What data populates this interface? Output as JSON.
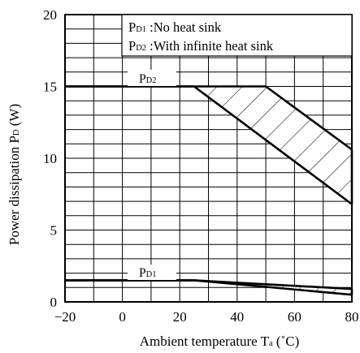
{
  "chart_data": {
    "type": "line",
    "title": "",
    "xlabel": {
      "text": "Ambient temperature T",
      "sub": "a",
      "unit": " (˚C)"
    },
    "ylabel": {
      "text": "Power dissipation P",
      "sub": "D",
      "unit": " (W)"
    },
    "xlim": [
      -20,
      80
    ],
    "ylim": [
      0,
      20
    ],
    "x_ticks": [
      -20,
      0,
      20,
      40,
      60,
      80
    ],
    "y_ticks": [
      0,
      5,
      10,
      15,
      20
    ],
    "x_tick_labels": [
      "−20",
      "0",
      "20",
      "40",
      "60",
      "80"
    ],
    "y_tick_labels": [
      "0",
      "5",
      "10",
      "15",
      "20"
    ],
    "grid": true,
    "legend_position": "top-right",
    "legend": [
      {
        "main": "P",
        "sub": "D1",
        "text": " :No heat sink"
      },
      {
        "main": "P",
        "sub": "D2",
        "text": " :With infinite heat sink"
      }
    ],
    "series": [
      {
        "name": {
          "main": "P",
          "sub": "D1"
        },
        "upper": [
          [
            -20,
            1.5
          ],
          [
            25,
            1.5
          ],
          [
            80,
            0.9
          ]
        ],
        "lower": [
          [
            -20,
            1.5
          ],
          [
            25,
            1.5
          ],
          [
            80,
            0.5
          ]
        ],
        "hatched_band": [
          [
            25,
            1.5
          ],
          [
            80,
            0.9
          ],
          [
            80,
            0.5
          ]
        ]
      },
      {
        "name": {
          "main": "P",
          "sub": "D2"
        },
        "upper": [
          [
            -20,
            15
          ],
          [
            50,
            15
          ],
          [
            80,
            10.6
          ]
        ],
        "lower": [
          [
            -20,
            15
          ],
          [
            25,
            15
          ],
          [
            80,
            6.8
          ]
        ],
        "hatched_band": [
          [
            25,
            15
          ],
          [
            50,
            15
          ],
          [
            80,
            10.6
          ],
          [
            80,
            6.8
          ]
        ]
      }
    ]
  }
}
